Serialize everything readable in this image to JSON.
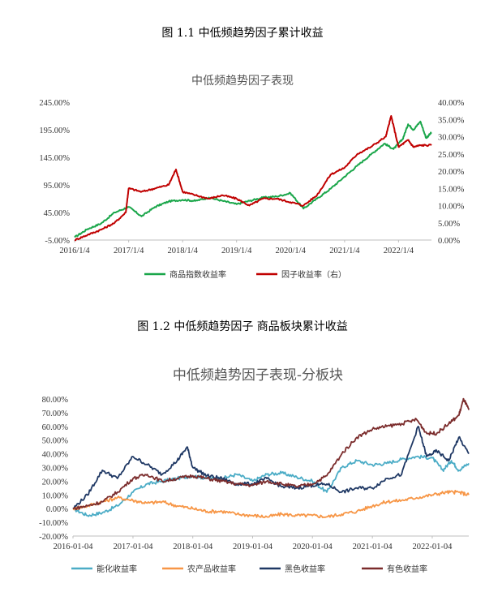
{
  "figures": [
    {
      "caption": "图 1.1  中低频趋势因子累计收益"
    },
    {
      "caption": "图 1.2  中低频趋势因子  商品板块累计收益"
    }
  ],
  "chart_data": [
    {
      "type": "line",
      "title": "中低频趋势因子表现",
      "x_tick_labels": [
        "2016/1/4",
        "2017/1/4",
        "2018/1/4",
        "2019/1/4",
        "2020/1/4",
        "2021/1/4",
        "2022/1/4"
      ],
      "x_range": [
        "2016-01-04",
        "2022-08-15"
      ],
      "y_left": {
        "ticks": [
          "245.00%",
          "195.00%",
          "145.00%",
          "95.00%",
          "45.00%",
          "-5.00%"
        ],
        "range": [
          -5,
          245
        ]
      },
      "y_right": {
        "ticks": [
          "40.00%",
          "35.00%",
          "30.00%",
          "25.00%",
          "20.00%",
          "15.00%",
          "10.00%",
          "5.00%",
          "0.00%"
        ],
        "range": [
          0,
          40
        ]
      },
      "grid": false,
      "legend": "bottom",
      "colors": {
        "商品指数收益率": "#1aa64a",
        "因子收益率（右）": "#c00000"
      },
      "series": [
        {
          "name": "商品指数收益率",
          "axis": "left",
          "x": [
            "2016-01-04",
            "2016-04-01",
            "2016-07-01",
            "2016-10-01",
            "2017-01-04",
            "2017-04-01",
            "2017-07-01",
            "2017-10-01",
            "2018-01-04",
            "2018-04-01",
            "2018-07-01",
            "2018-10-01",
            "2019-01-04",
            "2019-04-01",
            "2019-07-01",
            "2019-10-01",
            "2020-01-04",
            "2020-04-01",
            "2020-07-01",
            "2020-10-01",
            "2021-01-04",
            "2021-04-01",
            "2021-07-01",
            "2021-10-01",
            "2021-12-01",
            "2022-02-01",
            "2022-03-10",
            "2022-04-15",
            "2022-06-01",
            "2022-07-10",
            "2022-08-15"
          ],
          "values": [
            0,
            15,
            25,
            45,
            55,
            38,
            55,
            65,
            68,
            66,
            72,
            66,
            60,
            66,
            72,
            74,
            80,
            52,
            70,
            88,
            110,
            130,
            150,
            170,
            160,
            178,
            205,
            195,
            210,
            180,
            190
          ]
        },
        {
          "name": "因子收益率（右）",
          "axis": "right",
          "x": [
            "2016-01-04",
            "2016-04-01",
            "2016-07-01",
            "2016-10-01",
            "2016-12-15",
            "2017-01-04",
            "2017-04-01",
            "2017-07-01",
            "2017-10-01",
            "2017-11-20",
            "2018-01-04",
            "2018-04-01",
            "2018-07-01",
            "2018-10-01",
            "2019-01-04",
            "2019-04-01",
            "2019-07-01",
            "2019-10-01",
            "2020-01-04",
            "2020-04-01",
            "2020-07-01",
            "2020-10-01",
            "2021-01-04",
            "2021-04-01",
            "2021-07-01",
            "2021-10-10",
            "2021-11-15",
            "2022-01-04",
            "2022-03-10",
            "2022-04-15",
            "2022-06-01",
            "2022-08-15"
          ],
          "values": [
            0,
            1.5,
            3,
            5,
            8,
            15,
            14,
            15,
            16,
            20.5,
            14,
            13,
            12,
            13,
            12,
            10,
            12,
            12,
            11,
            10,
            13,
            19,
            21,
            25,
            27,
            30,
            36,
            27,
            29,
            27,
            27.5,
            27.5
          ]
        }
      ]
    },
    {
      "type": "line",
      "title": "中低频趋势因子表现-分板块",
      "x_tick_labels": [
        "2016-01-04",
        "2017-01-04",
        "2018-01-04",
        "2019-01-04",
        "2020-01-04",
        "2021-01-04",
        "2022-01-04"
      ],
      "x_range": [
        "2016-01-04",
        "2022-08-15"
      ],
      "y_left": {
        "ticks": [
          "80.00%",
          "70.00%",
          "60.00%",
          "50.00%",
          "40.00%",
          "30.00%",
          "20.00%",
          "10.00%",
          "0.00%",
          "-10.00%",
          "-20.00%"
        ],
        "range": [
          -20,
          80
        ]
      },
      "grid": false,
      "legend": "bottom",
      "colors": {
        "能化收益率": "#4bacc6",
        "农产品收益率": "#f79646",
        "黑色收益率": "#1f3864",
        "有色收益率": "#7b2c2c"
      },
      "series": [
        {
          "name": "能化收益率",
          "x": [
            "2016-01-04",
            "2016-04-01",
            "2016-07-01",
            "2016-10-01",
            "2017-01-04",
            "2017-04-01",
            "2017-07-01",
            "2017-10-01",
            "2018-01-04",
            "2018-04-01",
            "2018-07-01",
            "2018-10-01",
            "2019-01-04",
            "2019-04-01",
            "2019-07-01",
            "2019-10-01",
            "2020-01-04",
            "2020-04-01",
            "2020-07-01",
            "2020-10-01",
            "2021-01-04",
            "2021-04-01",
            "2021-07-01",
            "2021-10-01",
            "2022-01-04",
            "2022-03-10",
            "2022-05-01",
            "2022-06-15",
            "2022-08-15"
          ],
          "values": [
            0,
            -5,
            -3,
            2,
            12,
            18,
            20,
            22,
            24,
            22,
            22,
            25,
            20,
            25,
            26,
            23,
            20,
            12,
            30,
            35,
            32,
            33,
            36,
            38,
            37,
            28,
            35,
            28,
            33
          ]
        },
        {
          "name": "农产品收益率",
          "x": [
            "2016-01-04",
            "2016-04-01",
            "2016-07-01",
            "2016-10-01",
            "2017-01-04",
            "2017-04-01",
            "2017-07-01",
            "2017-10-01",
            "2018-01-04",
            "2018-04-01",
            "2018-07-01",
            "2018-10-01",
            "2019-01-04",
            "2019-04-01",
            "2019-07-01",
            "2019-10-01",
            "2020-01-04",
            "2020-04-01",
            "2020-07-01",
            "2020-10-01",
            "2021-01-04",
            "2021-04-01",
            "2021-07-01",
            "2021-10-01",
            "2022-01-04",
            "2022-04-01",
            "2022-06-15",
            "2022-08-15"
          ],
          "values": [
            0,
            2,
            5,
            8,
            6,
            4,
            5,
            2,
            0,
            -2,
            -2,
            -4,
            -5,
            -6,
            -4,
            -5,
            -5,
            -6,
            -4,
            -2,
            2,
            5,
            6,
            8,
            10,
            12,
            12,
            10
          ]
        },
        {
          "name": "黑色收益率",
          "x": [
            "2016-01-04",
            "2016-04-01",
            "2016-07-01",
            "2016-10-01",
            "2017-01-04",
            "2017-04-01",
            "2017-07-01",
            "2017-10-01",
            "2017-12-01",
            "2018-01-04",
            "2018-04-01",
            "2018-07-01",
            "2018-10-01",
            "2019-01-04",
            "2019-04-01",
            "2019-07-01",
            "2019-10-01",
            "2020-01-04",
            "2020-04-01",
            "2020-07-01",
            "2020-10-01",
            "2021-01-04",
            "2021-04-01",
            "2021-07-01",
            "2021-10-10",
            "2021-12-01",
            "2022-02-01",
            "2022-04-15",
            "2022-06-15",
            "2022-08-15"
          ],
          "values": [
            0,
            10,
            28,
            22,
            38,
            32,
            25,
            35,
            45,
            30,
            24,
            22,
            18,
            18,
            22,
            16,
            15,
            17,
            18,
            12,
            15,
            15,
            22,
            25,
            60,
            38,
            42,
            35,
            52,
            40
          ]
        },
        {
          "name": "有色收益率",
          "x": [
            "2016-01-04",
            "2016-04-01",
            "2016-07-01",
            "2016-10-01",
            "2017-01-04",
            "2017-04-01",
            "2017-07-01",
            "2017-10-01",
            "2018-01-04",
            "2018-04-01",
            "2018-07-01",
            "2018-10-01",
            "2019-01-04",
            "2019-04-01",
            "2019-07-01",
            "2019-10-01",
            "2020-01-04",
            "2020-04-01",
            "2020-07-01",
            "2020-10-01",
            "2021-01-04",
            "2021-04-01",
            "2021-07-01",
            "2021-10-01",
            "2021-12-01",
            "2022-02-01",
            "2022-04-15",
            "2022-06-15",
            "2022-07-15",
            "2022-08-15"
          ],
          "values": [
            0,
            2,
            5,
            12,
            22,
            25,
            20,
            22,
            24,
            22,
            20,
            18,
            17,
            20,
            18,
            16,
            18,
            24,
            40,
            52,
            58,
            60,
            62,
            65,
            55,
            55,
            62,
            68,
            80,
            72
          ]
        }
      ]
    }
  ]
}
